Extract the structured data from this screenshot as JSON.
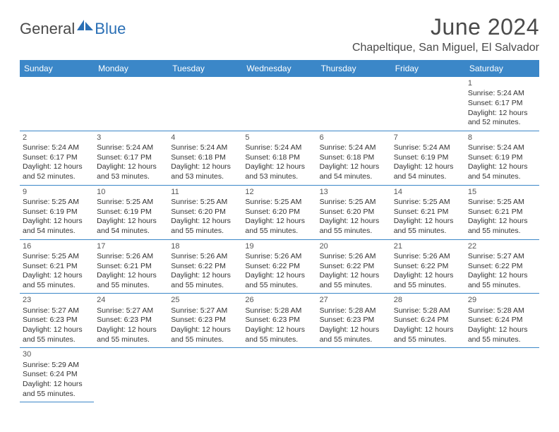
{
  "logo": {
    "part1": "General",
    "part2": "Blue"
  },
  "title": "June 2024",
  "location": "Chapeltique, San Miguel, El Salvador",
  "colors": {
    "header_bg": "#3b87c8",
    "header_text": "#ffffff",
    "border": "#3b87c8",
    "logo_gray": "#4a4a4a",
    "logo_blue": "#2a6fb5"
  },
  "daysOfWeek": [
    "Sunday",
    "Monday",
    "Tuesday",
    "Wednesday",
    "Thursday",
    "Friday",
    "Saturday"
  ],
  "startOffset": 6,
  "days": [
    {
      "n": 1,
      "sunrise": "5:24 AM",
      "sunset": "6:17 PM",
      "daylight": "12 hours and 52 minutes."
    },
    {
      "n": 2,
      "sunrise": "5:24 AM",
      "sunset": "6:17 PM",
      "daylight": "12 hours and 52 minutes."
    },
    {
      "n": 3,
      "sunrise": "5:24 AM",
      "sunset": "6:17 PM",
      "daylight": "12 hours and 53 minutes."
    },
    {
      "n": 4,
      "sunrise": "5:24 AM",
      "sunset": "6:18 PM",
      "daylight": "12 hours and 53 minutes."
    },
    {
      "n": 5,
      "sunrise": "5:24 AM",
      "sunset": "6:18 PM",
      "daylight": "12 hours and 53 minutes."
    },
    {
      "n": 6,
      "sunrise": "5:24 AM",
      "sunset": "6:18 PM",
      "daylight": "12 hours and 54 minutes."
    },
    {
      "n": 7,
      "sunrise": "5:24 AM",
      "sunset": "6:19 PM",
      "daylight": "12 hours and 54 minutes."
    },
    {
      "n": 8,
      "sunrise": "5:24 AM",
      "sunset": "6:19 PM",
      "daylight": "12 hours and 54 minutes."
    },
    {
      "n": 9,
      "sunrise": "5:25 AM",
      "sunset": "6:19 PM",
      "daylight": "12 hours and 54 minutes."
    },
    {
      "n": 10,
      "sunrise": "5:25 AM",
      "sunset": "6:19 PM",
      "daylight": "12 hours and 54 minutes."
    },
    {
      "n": 11,
      "sunrise": "5:25 AM",
      "sunset": "6:20 PM",
      "daylight": "12 hours and 55 minutes."
    },
    {
      "n": 12,
      "sunrise": "5:25 AM",
      "sunset": "6:20 PM",
      "daylight": "12 hours and 55 minutes."
    },
    {
      "n": 13,
      "sunrise": "5:25 AM",
      "sunset": "6:20 PM",
      "daylight": "12 hours and 55 minutes."
    },
    {
      "n": 14,
      "sunrise": "5:25 AM",
      "sunset": "6:21 PM",
      "daylight": "12 hours and 55 minutes."
    },
    {
      "n": 15,
      "sunrise": "5:25 AM",
      "sunset": "6:21 PM",
      "daylight": "12 hours and 55 minutes."
    },
    {
      "n": 16,
      "sunrise": "5:25 AM",
      "sunset": "6:21 PM",
      "daylight": "12 hours and 55 minutes."
    },
    {
      "n": 17,
      "sunrise": "5:26 AM",
      "sunset": "6:21 PM",
      "daylight": "12 hours and 55 minutes."
    },
    {
      "n": 18,
      "sunrise": "5:26 AM",
      "sunset": "6:22 PM",
      "daylight": "12 hours and 55 minutes."
    },
    {
      "n": 19,
      "sunrise": "5:26 AM",
      "sunset": "6:22 PM",
      "daylight": "12 hours and 55 minutes."
    },
    {
      "n": 20,
      "sunrise": "5:26 AM",
      "sunset": "6:22 PM",
      "daylight": "12 hours and 55 minutes."
    },
    {
      "n": 21,
      "sunrise": "5:26 AM",
      "sunset": "6:22 PM",
      "daylight": "12 hours and 55 minutes."
    },
    {
      "n": 22,
      "sunrise": "5:27 AM",
      "sunset": "6:22 PM",
      "daylight": "12 hours and 55 minutes."
    },
    {
      "n": 23,
      "sunrise": "5:27 AM",
      "sunset": "6:23 PM",
      "daylight": "12 hours and 55 minutes."
    },
    {
      "n": 24,
      "sunrise": "5:27 AM",
      "sunset": "6:23 PM",
      "daylight": "12 hours and 55 minutes."
    },
    {
      "n": 25,
      "sunrise": "5:27 AM",
      "sunset": "6:23 PM",
      "daylight": "12 hours and 55 minutes."
    },
    {
      "n": 26,
      "sunrise": "5:28 AM",
      "sunset": "6:23 PM",
      "daylight": "12 hours and 55 minutes."
    },
    {
      "n": 27,
      "sunrise": "5:28 AM",
      "sunset": "6:23 PM",
      "daylight": "12 hours and 55 minutes."
    },
    {
      "n": 28,
      "sunrise": "5:28 AM",
      "sunset": "6:24 PM",
      "daylight": "12 hours and 55 minutes."
    },
    {
      "n": 29,
      "sunrise": "5:28 AM",
      "sunset": "6:24 PM",
      "daylight": "12 hours and 55 minutes."
    },
    {
      "n": 30,
      "sunrise": "5:29 AM",
      "sunset": "6:24 PM",
      "daylight": "12 hours and 55 minutes."
    }
  ],
  "labels": {
    "sunrise": "Sunrise:",
    "sunset": "Sunset:",
    "daylight": "Daylight:"
  }
}
